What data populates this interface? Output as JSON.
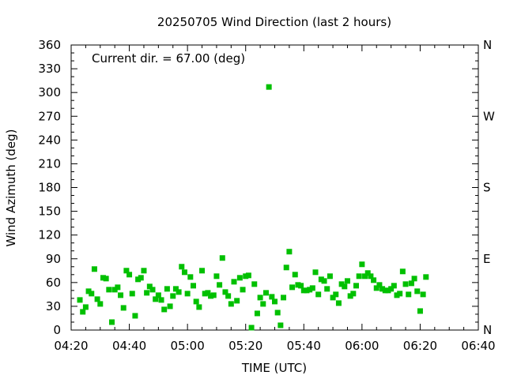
{
  "chart_data": {
    "type": "scatter",
    "title": "20250705 Wind Direction (last 2 hours)",
    "xlabel": "TIME (UTC)",
    "ylabel": "Wind Azimuth (deg)",
    "annotation": "Current dir. = 67.00 (deg)",
    "xlim": [
      "04:20",
      "06:40"
    ],
    "ylim": [
      0,
      360
    ],
    "x_ticks": [
      "04:20",
      "04:40",
      "05:00",
      "05:20",
      "05:40",
      "06:00",
      "06:20",
      "06:40"
    ],
    "y_ticks": [
      0,
      30,
      60,
      90,
      120,
      150,
      180,
      210,
      240,
      270,
      300,
      330,
      360
    ],
    "right_ticks": [
      {
        "value": 0,
        "label": "N"
      },
      {
        "value": 90,
        "label": "E"
      },
      {
        "value": 180,
        "label": "S"
      },
      {
        "value": 270,
        "label": "W"
      },
      {
        "value": 360,
        "label": "N"
      }
    ],
    "grid": false,
    "marker_color": "#00c000",
    "series": [
      {
        "points": [
          [
            "04:23",
            38
          ],
          [
            "04:24",
            23
          ],
          [
            "04:25",
            29
          ],
          [
            "04:26",
            49
          ],
          [
            "04:27",
            46
          ],
          [
            "04:28",
            77
          ],
          [
            "04:29",
            39
          ],
          [
            "04:30",
            33
          ],
          [
            "04:31",
            66
          ],
          [
            "04:32",
            65
          ],
          [
            "04:33",
            51
          ],
          [
            "04:34",
            10
          ],
          [
            "04:35",
            51
          ],
          [
            "04:36",
            54
          ],
          [
            "04:37",
            44
          ],
          [
            "04:38",
            28
          ],
          [
            "04:39",
            75
          ],
          [
            "04:40",
            70
          ],
          [
            "04:41",
            46
          ],
          [
            "04:42",
            18
          ],
          [
            "04:43",
            64
          ],
          [
            "04:44",
            66
          ],
          [
            "04:45",
            75
          ],
          [
            "04:46",
            47
          ],
          [
            "04:47",
            55
          ],
          [
            "04:48",
            51
          ],
          [
            "04:49",
            39
          ],
          [
            "04:50",
            44
          ],
          [
            "04:51",
            38
          ],
          [
            "04:52",
            26
          ],
          [
            "04:53",
            52
          ],
          [
            "04:54",
            30
          ],
          [
            "04:55",
            43
          ],
          [
            "04:56",
            52
          ],
          [
            "04:57",
            48
          ],
          [
            "04:58",
            80
          ],
          [
            "04:59",
            73
          ],
          [
            "05:00",
            46
          ],
          [
            "05:01",
            67
          ],
          [
            "05:02",
            56
          ],
          [
            "05:03",
            36
          ],
          [
            "05:04",
            29
          ],
          [
            "05:05",
            75
          ],
          [
            "05:06",
            46
          ],
          [
            "05:07",
            47
          ],
          [
            "05:08",
            43
          ],
          [
            "05:09",
            44
          ],
          [
            "05:10",
            68
          ],
          [
            "05:11",
            57
          ],
          [
            "05:12",
            91
          ],
          [
            "05:13",
            48
          ],
          [
            "05:14",
            43
          ],
          [
            "05:15",
            33
          ],
          [
            "05:16",
            61
          ],
          [
            "05:17",
            37
          ],
          [
            "05:18",
            66
          ],
          [
            "05:19",
            51
          ],
          [
            "05:20",
            68
          ],
          [
            "05:21",
            69
          ],
          [
            "05:22",
            3
          ],
          [
            "05:23",
            58
          ],
          [
            "05:24",
            21
          ],
          [
            "05:25",
            41
          ],
          [
            "05:26",
            33
          ],
          [
            "05:27",
            47
          ],
          [
            "05:28",
            307
          ],
          [
            "05:29",
            42
          ],
          [
            "05:30",
            36
          ],
          [
            "05:31",
            22
          ],
          [
            "05:32",
            6
          ],
          [
            "05:33",
            41
          ],
          [
            "05:34",
            79
          ],
          [
            "05:35",
            99
          ],
          [
            "05:36",
            54
          ],
          [
            "05:37",
            70
          ],
          [
            "05:38",
            57
          ],
          [
            "05:39",
            56
          ],
          [
            "05:40",
            50
          ],
          [
            "05:41",
            50
          ],
          [
            "05:42",
            51
          ],
          [
            "05:43",
            53
          ],
          [
            "05:44",
            73
          ],
          [
            "05:45",
            45
          ],
          [
            "05:46",
            64
          ],
          [
            "05:47",
            62
          ],
          [
            "05:48",
            52
          ],
          [
            "05:49",
            68
          ],
          [
            "05:50",
            41
          ],
          [
            "05:51",
            45
          ],
          [
            "05:52",
            34
          ],
          [
            "05:53",
            58
          ],
          [
            "05:54",
            55
          ],
          [
            "05:55",
            62
          ],
          [
            "05:56",
            43
          ],
          [
            "05:57",
            46
          ],
          [
            "05:58",
            56
          ],
          [
            "05:59",
            68
          ],
          [
            "06:00",
            83
          ],
          [
            "06:01",
            68
          ],
          [
            "06:02",
            72
          ],
          [
            "06:03",
            68
          ],
          [
            "06:04",
            63
          ],
          [
            "06:05",
            53
          ],
          [
            "06:06",
            57
          ],
          [
            "06:07",
            52
          ],
          [
            "06:08",
            50
          ],
          [
            "06:09",
            50
          ],
          [
            "06:10",
            52
          ],
          [
            "06:11",
            56
          ],
          [
            "06:12",
            44
          ],
          [
            "06:13",
            46
          ],
          [
            "06:14",
            74
          ],
          [
            "06:15",
            58
          ],
          [
            "06:16",
            45
          ],
          [
            "06:17",
            59
          ],
          [
            "06:18",
            65
          ],
          [
            "06:19",
            49
          ],
          [
            "06:20",
            24
          ],
          [
            "06:21",
            45
          ],
          [
            "06:22",
            67
          ]
        ]
      }
    ]
  }
}
